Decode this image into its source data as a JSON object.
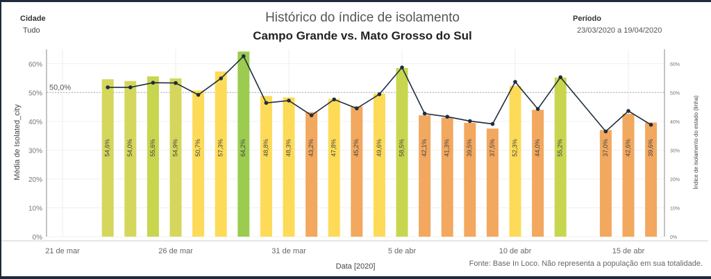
{
  "filters": {
    "city_label": "Cidade",
    "city_value": "Tudo",
    "period_label": "Período",
    "period_value": "23/03/2020 a 19/04/2020"
  },
  "source_note": "Fonte: Base In Loco. Não representa a população em sua totalidade.",
  "colors": {
    "green_dark": "#9ccc4f",
    "green": "#c8d64f",
    "olive": "#d4d75c",
    "yellow": "#fddb58",
    "orange": "#f2a85f",
    "line": "#1e2d3f",
    "reference": "#aaaaaa"
  },
  "chart_data": {
    "type": "bar",
    "title": "Histórico do índice de isolamento",
    "subtitle": "Campo Grande vs. Mato Grosso do Sul",
    "xlabel": "Data [2020]",
    "ylabel": "Média de Isolated_city",
    "y2label": "Índice de isolamento do estado (linha)",
    "ylim": [
      0,
      65
    ],
    "yticks": [
      "0%",
      "10%",
      "20%",
      "30%",
      "40%",
      "50%",
      "60%"
    ],
    "xticks": [
      "21 de mar",
      "26 de mar",
      "31 de mar",
      "5 de abr",
      "10 de abr",
      "15 de abr"
    ],
    "reference_line": {
      "value": 50,
      "label": "50,0%"
    },
    "x": [
      "2020-03-23",
      "2020-03-24",
      "2020-03-25",
      "2020-03-26",
      "2020-03-27",
      "2020-03-28",
      "2020-03-29",
      "2020-03-30",
      "2020-03-31",
      "2020-04-01",
      "2020-04-02",
      "2020-04-03",
      "2020-04-04",
      "2020-04-05",
      "2020-04-06",
      "2020-04-07",
      "2020-04-08",
      "2020-04-09",
      "2020-04-10",
      "2020-04-11",
      "2020-04-12",
      "2020-04-13",
      "2020-04-14",
      "2020-04-15",
      "2020-04-16",
      "2020-04-17",
      "2020-04-18",
      "2020-04-19"
    ],
    "bars": {
      "values": [
        54.6,
        54.0,
        55.6,
        54.9,
        50.7,
        57.3,
        64.2,
        48.8,
        48.3,
        43.2,
        47.8,
        45.2,
        49.6,
        58.5,
        42.1,
        41.3,
        39.5,
        37.5,
        52.3,
        44.0,
        55.2,
        37.0,
        42.6,
        39.6
      ],
      "labels": [
        "54,6%",
        "54,0%",
        "55,6%",
        "54,9%",
        "50,7%",
        "57,3%",
        "64,2%",
        "48,8%",
        "48,3%",
        "43,2%",
        "47,8%",
        "45,2%",
        "49,6%",
        "58,5%",
        "42,1%",
        "41,3%",
        "39,5%",
        "37,5%",
        "52,3%",
        "44,0%",
        "55,2%",
        "37,0%",
        "42,6%",
        "39,6%"
      ],
      "dates": [
        "2020-03-23",
        "2020-03-24",
        "2020-03-25",
        "2020-03-26",
        "2020-03-27",
        "2020-03-28",
        "2020-03-29",
        "2020-03-30",
        "2020-03-31",
        "2020-04-01",
        "2020-04-02",
        "2020-04-03",
        "2020-04-04",
        "2020-04-05",
        "2020-04-06",
        "2020-04-07",
        "2020-04-08",
        "2020-04-09",
        "2020-04-10",
        "2020-04-11",
        "2020-04-12",
        "2020-04-14",
        "2020-04-15",
        "2020-04-16"
      ],
      "colors": [
        "olive",
        "olive",
        "green",
        "olive",
        "yellow",
        "yellow",
        "green_dark",
        "yellow",
        "yellow",
        "orange",
        "yellow",
        "orange",
        "yellow",
        "green",
        "orange",
        "orange",
        "orange",
        "orange",
        "yellow",
        "orange",
        "green",
        "orange",
        "orange",
        "orange"
      ]
    },
    "line": {
      "name": "Índice de isolamento do estado (linha)",
      "dates": [
        "2020-03-23",
        "2020-03-24",
        "2020-03-25",
        "2020-03-26",
        "2020-03-27",
        "2020-03-28",
        "2020-03-29",
        "2020-03-30",
        "2020-03-31",
        "2020-04-01",
        "2020-04-02",
        "2020-04-03",
        "2020-04-04",
        "2020-04-05",
        "2020-04-06",
        "2020-04-07",
        "2020-04-08",
        "2020-04-09",
        "2020-04-10",
        "2020-04-11",
        "2020-04-12",
        "2020-04-14",
        "2020-04-15",
        "2020-04-16"
      ],
      "values": [
        51.8,
        51.8,
        53.4,
        53.3,
        49.2,
        54.9,
        62.6,
        46.4,
        47.2,
        42.1,
        47.6,
        44.5,
        49.4,
        58.7,
        42.7,
        41.6,
        40.1,
        39.1,
        53.7,
        44.3,
        55.3,
        36.5,
        43.6,
        38.8
      ]
    },
    "grid": true,
    "legend": "none"
  }
}
